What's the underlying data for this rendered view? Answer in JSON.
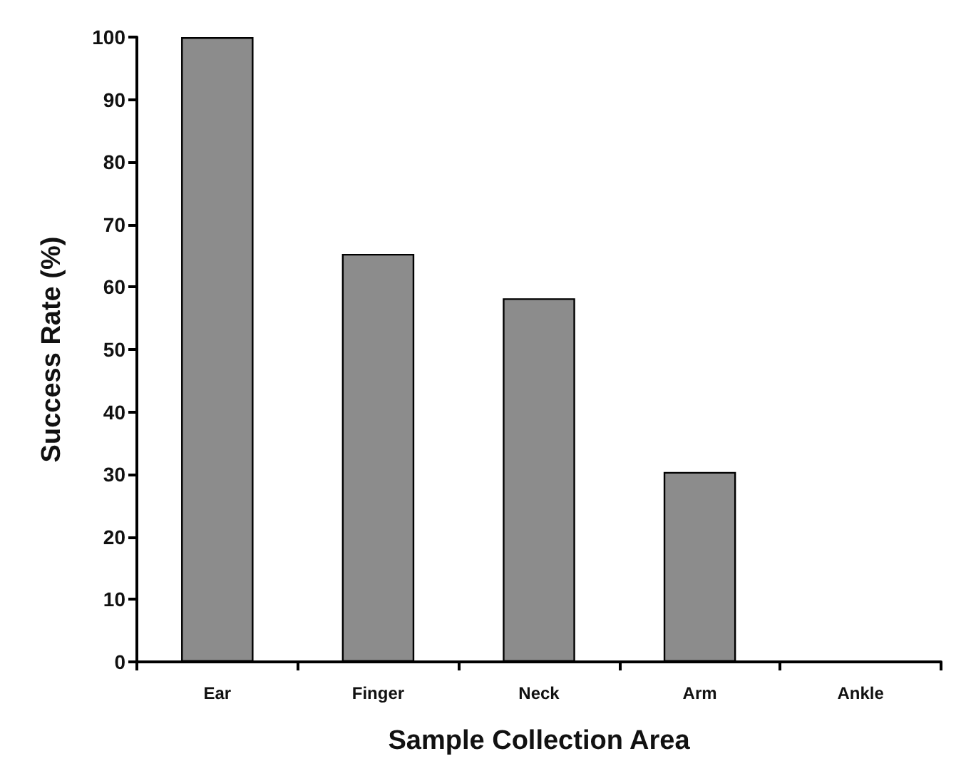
{
  "chart_data": {
    "type": "bar",
    "xlabel": "Sample Collection Area",
    "ylabel": "Success Rate (%)",
    "categories": [
      "Ear",
      "Finger",
      "Neck",
      "Arm",
      "Ankle"
    ],
    "values": [
      100,
      65.3,
      58.2,
      30.4,
      0
    ],
    "color": "#8c8c8c",
    "ylim": [
      0,
      100
    ],
    "yticks": [
      0,
      10,
      20,
      30,
      40,
      50,
      60,
      70,
      80,
      90,
      100
    ],
    "grid": false
  }
}
